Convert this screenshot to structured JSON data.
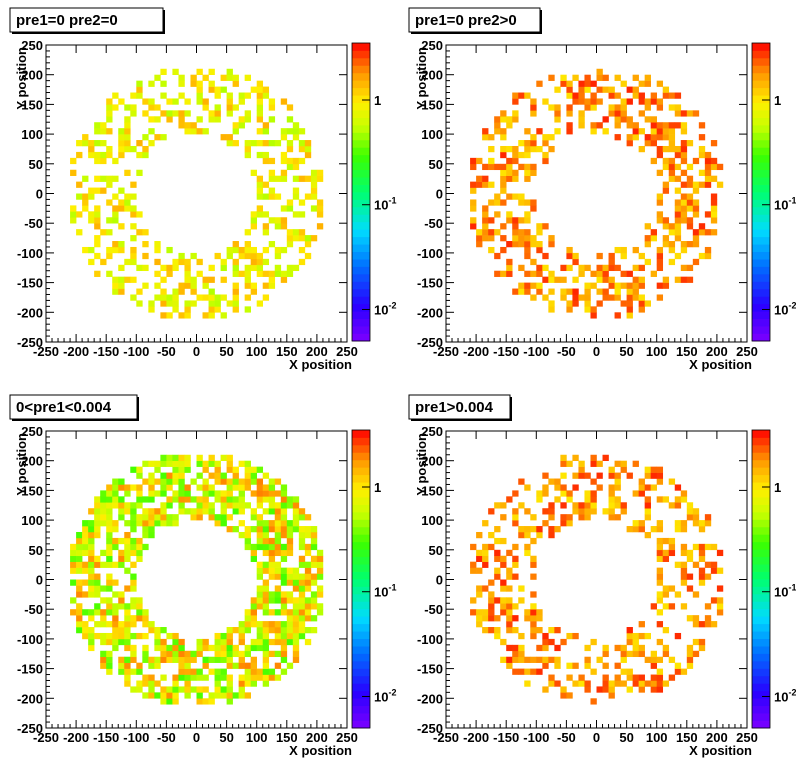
{
  "chart_data": [
    {
      "type": "heatmap",
      "title": "pre1=0 pre2=0",
      "xlabel": "X position",
      "ylabel": "Y position",
      "xlim": [
        -250,
        250
      ],
      "ylim": [
        -250,
        250
      ],
      "xticks": [
        "-250",
        "-200",
        "-150",
        "-100",
        "-50",
        "0",
        "50",
        "100",
        "150",
        "200",
        "250"
      ],
      "yticks": [
        "-250",
        "-200",
        "-150",
        "-100",
        "-50",
        "0",
        "50",
        "100",
        "150",
        "200",
        "250"
      ],
      "z_scale": "log",
      "z_range": [
        0.005,
        3.5
      ],
      "z_labels": [
        {
          "text": "10^-2",
          "base": "10",
          "exp": "-2",
          "value": 0.01
        },
        {
          "text": "10^-1",
          "base": "10",
          "exp": "-1",
          "value": 0.1
        },
        {
          "text": "1",
          "value": 1
        }
      ],
      "distribution": "annulus, inner radius ~100, outer radius ~215, bin size ~10",
      "typical_values": [
        0.5,
        1.5
      ],
      "fill_fraction": 0.4,
      "seed": 11
    },
    {
      "type": "heatmap",
      "title": "pre1=0 pre2>0",
      "xlabel": "X position",
      "ylabel": "Y position",
      "xlim": [
        -250,
        250
      ],
      "ylim": [
        -250,
        250
      ],
      "xticks": [
        "-250",
        "-200",
        "-150",
        "-100",
        "-50",
        "0",
        "50",
        "100",
        "150",
        "200",
        "250"
      ],
      "yticks": [
        "-250",
        "-200",
        "-150",
        "-100",
        "-50",
        "0",
        "50",
        "100",
        "150",
        "200",
        "250"
      ],
      "z_scale": "log",
      "z_range": [
        0.005,
        3.5
      ],
      "z_labels": [
        {
          "text": "10^-2",
          "base": "10",
          "exp": "-2",
          "value": 0.01
        },
        {
          "text": "10^-1",
          "base": "10",
          "exp": "-1",
          "value": 0.1
        },
        {
          "text": "1",
          "value": 1
        }
      ],
      "distribution": "annulus, inner radius ~100, outer radius ~215, bin size ~10",
      "typical_values": [
        1,
        3
      ],
      "fill_fraction": 0.45,
      "seed": 23
    },
    {
      "type": "heatmap",
      "title": "0<pre1<0.004",
      "xlabel": "X position",
      "ylabel": "Y position",
      "xlim": [
        -250,
        250
      ],
      "ylim": [
        -250,
        250
      ],
      "xticks": [
        "-250",
        "-200",
        "-150",
        "-100",
        "-50",
        "0",
        "50",
        "100",
        "150",
        "200",
        "250"
      ],
      "yticks": [
        "-250",
        "-200",
        "-150",
        "-100",
        "-50",
        "0",
        "50",
        "100",
        "150",
        "200",
        "250"
      ],
      "z_scale": "log",
      "z_range": [
        0.005,
        3.5
      ],
      "z_labels": [
        {
          "text": "10^-2",
          "base": "10",
          "exp": "-2",
          "value": 0.01
        },
        {
          "text": "10^-1",
          "base": "10",
          "exp": "-1",
          "value": 0.1
        },
        {
          "text": "1",
          "value": 1
        }
      ],
      "distribution": "annulus, inner radius ~100, outer radius ~215, bin size ~10",
      "typical_values": [
        0.3,
        2
      ],
      "fill_fraction": 0.7,
      "seed": 37
    },
    {
      "type": "heatmap",
      "title": "pre1>0.004",
      "xlabel": "X position",
      "ylabel": "Y position",
      "xlim": [
        -250,
        250
      ],
      "ylim": [
        -250,
        250
      ],
      "xticks": [
        "-250",
        "-200",
        "-150",
        "-100",
        "-50",
        "0",
        "50",
        "100",
        "150",
        "200",
        "250"
      ],
      "yticks": [
        "-250",
        "-200",
        "-150",
        "-100",
        "-50",
        "0",
        "50",
        "100",
        "150",
        "200",
        "250"
      ],
      "z_scale": "log",
      "z_range": [
        0.005,
        3.5
      ],
      "z_labels": [
        {
          "text": "10^-2",
          "base": "10",
          "exp": "-2",
          "value": 0.01
        },
        {
          "text": "10^-1",
          "base": "10",
          "exp": "-1",
          "value": 0.1
        },
        {
          "text": "1",
          "value": 1
        }
      ],
      "distribution": "annulus, inner radius ~100, outer radius ~215, bin size ~10",
      "typical_values": [
        1,
        3
      ],
      "fill_fraction": 0.4,
      "seed": 53
    }
  ]
}
